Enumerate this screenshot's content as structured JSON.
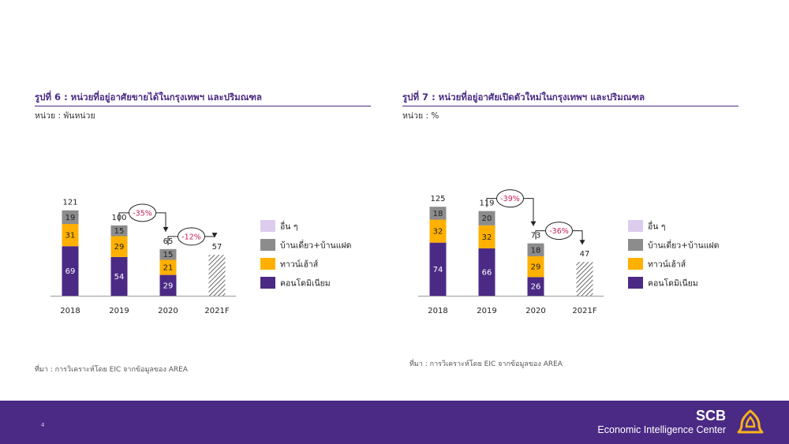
{
  "charts": [
    {
      "title": "รูปที่ 6 : หน่วยที่อยู่อาศัยขายได้ในกรุงเทพฯ และปริมณฑล",
      "unit": "หน่วย : พันหน่วย",
      "source": "ที่มา : การวิเคราะห์โดย EIC จากข้อมูลของ AREA"
    },
    {
      "title": "รูปที่ 7 : หน่วยที่อยู่อาศัยเปิดตัวใหม่ในกรุงเทพฯ และปริมณฑล",
      "unit": "หน่วย : %",
      "source": "ที่มา : การวิเคราะห์โดย EIC จากข้อมูลของ AREA"
    }
  ],
  "chart_data": [
    {
      "type": "bar",
      "stacked": true,
      "title": "รูปที่ 6 : หน่วยที่อยู่อาศัยขายได้ในกรุงเทพฯ และปริมณฑล",
      "ylabel": "หน่วย : พันหน่วย",
      "categories": [
        "2018",
        "2019",
        "2020",
        "2021F"
      ],
      "series": [
        {
          "name": "คอนโดมิเนียม",
          "color": "#4b2a85",
          "values": [
            69,
            54,
            29,
            null
          ]
        },
        {
          "name": "ทาวน์เฮ้าส์",
          "color": "#ffb000",
          "values": [
            31,
            29,
            21,
            null
          ]
        },
        {
          "name": "บ้านเดี่ยว+บ้านแฝด",
          "color": "#8c8c8c",
          "values": [
            19,
            15,
            15,
            null
          ]
        },
        {
          "name": "อื่น ๆ",
          "color": "#dccdef",
          "values": [
            null,
            null,
            null,
            null
          ]
        }
      ],
      "totals": [
        121,
        100,
        65,
        57
      ],
      "forecast_index": 3,
      "annotations": [
        {
          "text": "-35%",
          "from": 1,
          "to": 2
        },
        {
          "text": "-12%",
          "from": 2,
          "to": 3
        }
      ],
      "ylim": [
        0,
        125
      ],
      "legend_position": "right",
      "grid": false
    },
    {
      "type": "bar",
      "stacked": true,
      "title": "รูปที่ 7 : หน่วยที่อยู่อาศัยเปิดตัวใหม่ในกรุงเทพฯ และปริมณฑล",
      "ylabel": "หน่วย : %",
      "categories": [
        "2018",
        "2019",
        "2020",
        "2021F"
      ],
      "series": [
        {
          "name": "คอนโดมิเนียม",
          "color": "#4b2a85",
          "values": [
            74,
            66,
            26,
            null
          ]
        },
        {
          "name": "ทาวน์เฮ้าส์",
          "color": "#ffb000",
          "values": [
            32,
            32,
            29,
            null
          ]
        },
        {
          "name": "บ้านเดี่ยว+บ้านแฝด",
          "color": "#8c8c8c",
          "values": [
            18,
            20,
            18,
            null
          ]
        },
        {
          "name": "อื่น ๆ",
          "color": "#dccdef",
          "values": [
            null,
            null,
            null,
            null
          ]
        }
      ],
      "totals": [
        125,
        119,
        73,
        47
      ],
      "forecast_index": 3,
      "annotations": [
        {
          "text": "-39%",
          "from": 1,
          "to": 2
        },
        {
          "text": "-36%",
          "from": 2,
          "to": 3
        }
      ],
      "ylim": [
        0,
        125
      ],
      "legend_position": "right",
      "grid": false
    }
  ],
  "footer": {
    "page_number": "4",
    "brand": "SCB",
    "center": "Economic Intelligence Center",
    "logo_icon": "scb-logo-icon"
  }
}
